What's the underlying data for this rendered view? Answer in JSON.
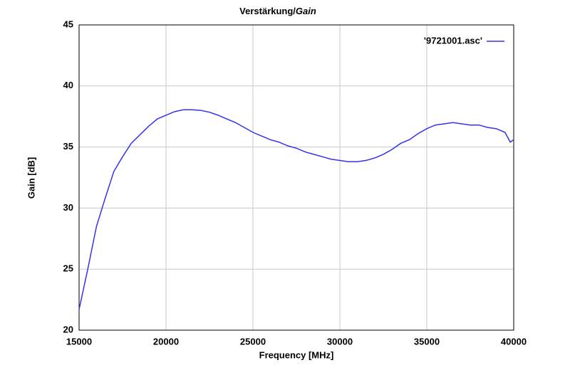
{
  "chart_data": {
    "type": "line",
    "title": [
      "Verstärkung/",
      "Gain"
    ],
    "x_label": "Frequency [MHz]",
    "y_label": "Gain [dB]",
    "x": [
      15000,
      15500,
      16000,
      16500,
      17000,
      17500,
      18000,
      18500,
      19000,
      19500,
      20000,
      20500,
      21000,
      21500,
      22000,
      22500,
      23000,
      23500,
      24000,
      24500,
      25000,
      25500,
      26000,
      26500,
      27000,
      27500,
      28000,
      28500,
      29000,
      29500,
      30000,
      30500,
      31000,
      31500,
      32000,
      32500,
      33000,
      33500,
      34000,
      34500,
      35000,
      35500,
      36000,
      36500,
      37000,
      37500,
      38000,
      38500,
      39000,
      39500,
      39800,
      40000
    ],
    "series": [
      {
        "name": "'9721001.asc'",
        "color": "#3333ee",
        "values": [
          21.7,
          25.0,
          28.5,
          30.8,
          33.0,
          34.2,
          35.3,
          36.0,
          36.7,
          37.3,
          37.6,
          37.9,
          38.05,
          38.05,
          38.0,
          37.85,
          37.6,
          37.3,
          37.0,
          36.6,
          36.2,
          35.9,
          35.6,
          35.4,
          35.1,
          34.9,
          34.6,
          34.4,
          34.2,
          34.0,
          33.9,
          33.8,
          33.8,
          33.9,
          34.1,
          34.4,
          34.8,
          35.3,
          35.6,
          36.1,
          36.5,
          36.8,
          36.9,
          37.0,
          36.9,
          36.8,
          36.8,
          36.6,
          36.5,
          36.2,
          35.4,
          35.6
        ]
      }
    ],
    "xlim": [
      15000,
      40000
    ],
    "xticks": [
      15000,
      20000,
      25000,
      30000,
      35000,
      40000
    ],
    "ylim": [
      20,
      45
    ],
    "yticks": [
      20,
      25,
      30,
      35,
      40,
      45
    ],
    "grid": true,
    "legend": "top-right"
  }
}
